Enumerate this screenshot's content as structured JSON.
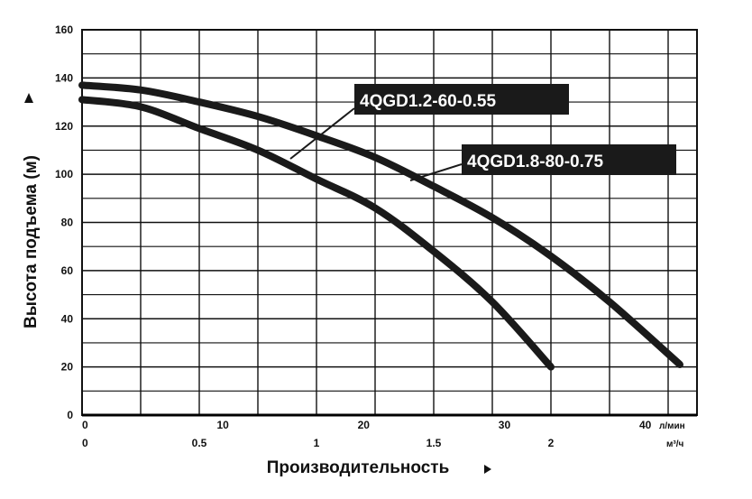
{
  "chart_data": {
    "type": "line",
    "ylabel": "Высота подъема (м)",
    "xlabel": "Производительность",
    "ylim": [
      0,
      160
    ],
    "yticks": [
      0,
      20,
      40,
      60,
      80,
      100,
      120,
      140,
      160
    ],
    "xlim_m3h": [
      0,
      2.5
    ],
    "x_axis_m3h": {
      "ticks": [
        0,
        0.5,
        1,
        1.5,
        2
      ],
      "unit": "м³/ч"
    },
    "x_axis_lmin": {
      "ticks": [
        0,
        10,
        20,
        30,
        40
      ],
      "unit": "л/мин"
    },
    "grid": true,
    "series": [
      {
        "name": "4QGD1.2-60-0.55",
        "x": [
          0,
          0.25,
          0.5,
          0.75,
          1.0,
          1.25,
          1.5,
          1.75,
          2.0
        ],
        "y": [
          131,
          128,
          119,
          110,
          98,
          86,
          68,
          47,
          20
        ]
      },
      {
        "name": "4QGD1.8-80-0.75",
        "x": [
          0,
          0.25,
          0.5,
          0.75,
          1.0,
          1.25,
          1.5,
          1.75,
          2.0,
          2.25,
          2.55
        ],
        "y": [
          137,
          135,
          130,
          124,
          116,
          107,
          95,
          82,
          66,
          47,
          21
        ]
      }
    ],
    "colors": {
      "curve": "#1a1a1a",
      "label_bg": "#1a1a1a",
      "label_text": "#ffffff",
      "grid": "#111111"
    }
  }
}
